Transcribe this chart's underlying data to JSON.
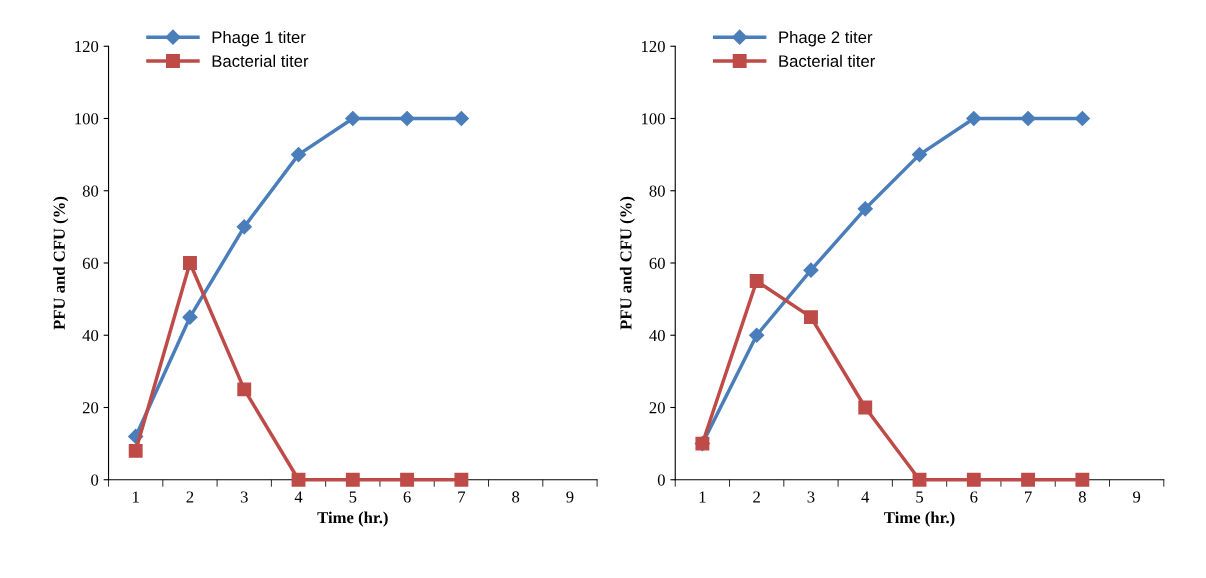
{
  "chart_data": [
    {
      "type": "line",
      "xlabel": "Time (hr.)",
      "ylabel": "PFU and CFU (%)",
      "categories": [
        "1",
        "2",
        "3",
        "4",
        "5",
        "6",
        "7",
        "8",
        "9"
      ],
      "ylim": [
        0,
        120
      ],
      "yticks": [
        0,
        20,
        40,
        60,
        80,
        100,
        120
      ],
      "grid": false,
      "legend": "top left",
      "series": [
        {
          "name": "Phage 1 titer",
          "color": "#4a7ebb",
          "marker": "diamond",
          "values": [
            12,
            45,
            70,
            90,
            100,
            100,
            100,
            null,
            null
          ]
        },
        {
          "name": "Bacterial titer",
          "color": "#be4b48",
          "marker": "square",
          "values": [
            8,
            60,
            25,
            0,
            0,
            0,
            0,
            null,
            null
          ]
        }
      ]
    },
    {
      "type": "line",
      "xlabel": "Time (hr.)",
      "ylabel": "PFU and CFU (%)",
      "categories": [
        "1",
        "2",
        "3",
        "4",
        "5",
        "6",
        "7",
        "8",
        "9"
      ],
      "ylim": [
        0,
        120
      ],
      "yticks": [
        0,
        20,
        40,
        60,
        80,
        100,
        120
      ],
      "grid": false,
      "legend": "top left",
      "series": [
        {
          "name": "Phage 2 titer",
          "color": "#4a7ebb",
          "marker": "diamond",
          "values": [
            10,
            40,
            58,
            75,
            90,
            100,
            100,
            100,
            null
          ]
        },
        {
          "name": "Bacterial titer",
          "color": "#be4b48",
          "marker": "square",
          "values": [
            10,
            55,
            45,
            20,
            0,
            0,
            0,
            0,
            null
          ]
        }
      ]
    }
  ]
}
